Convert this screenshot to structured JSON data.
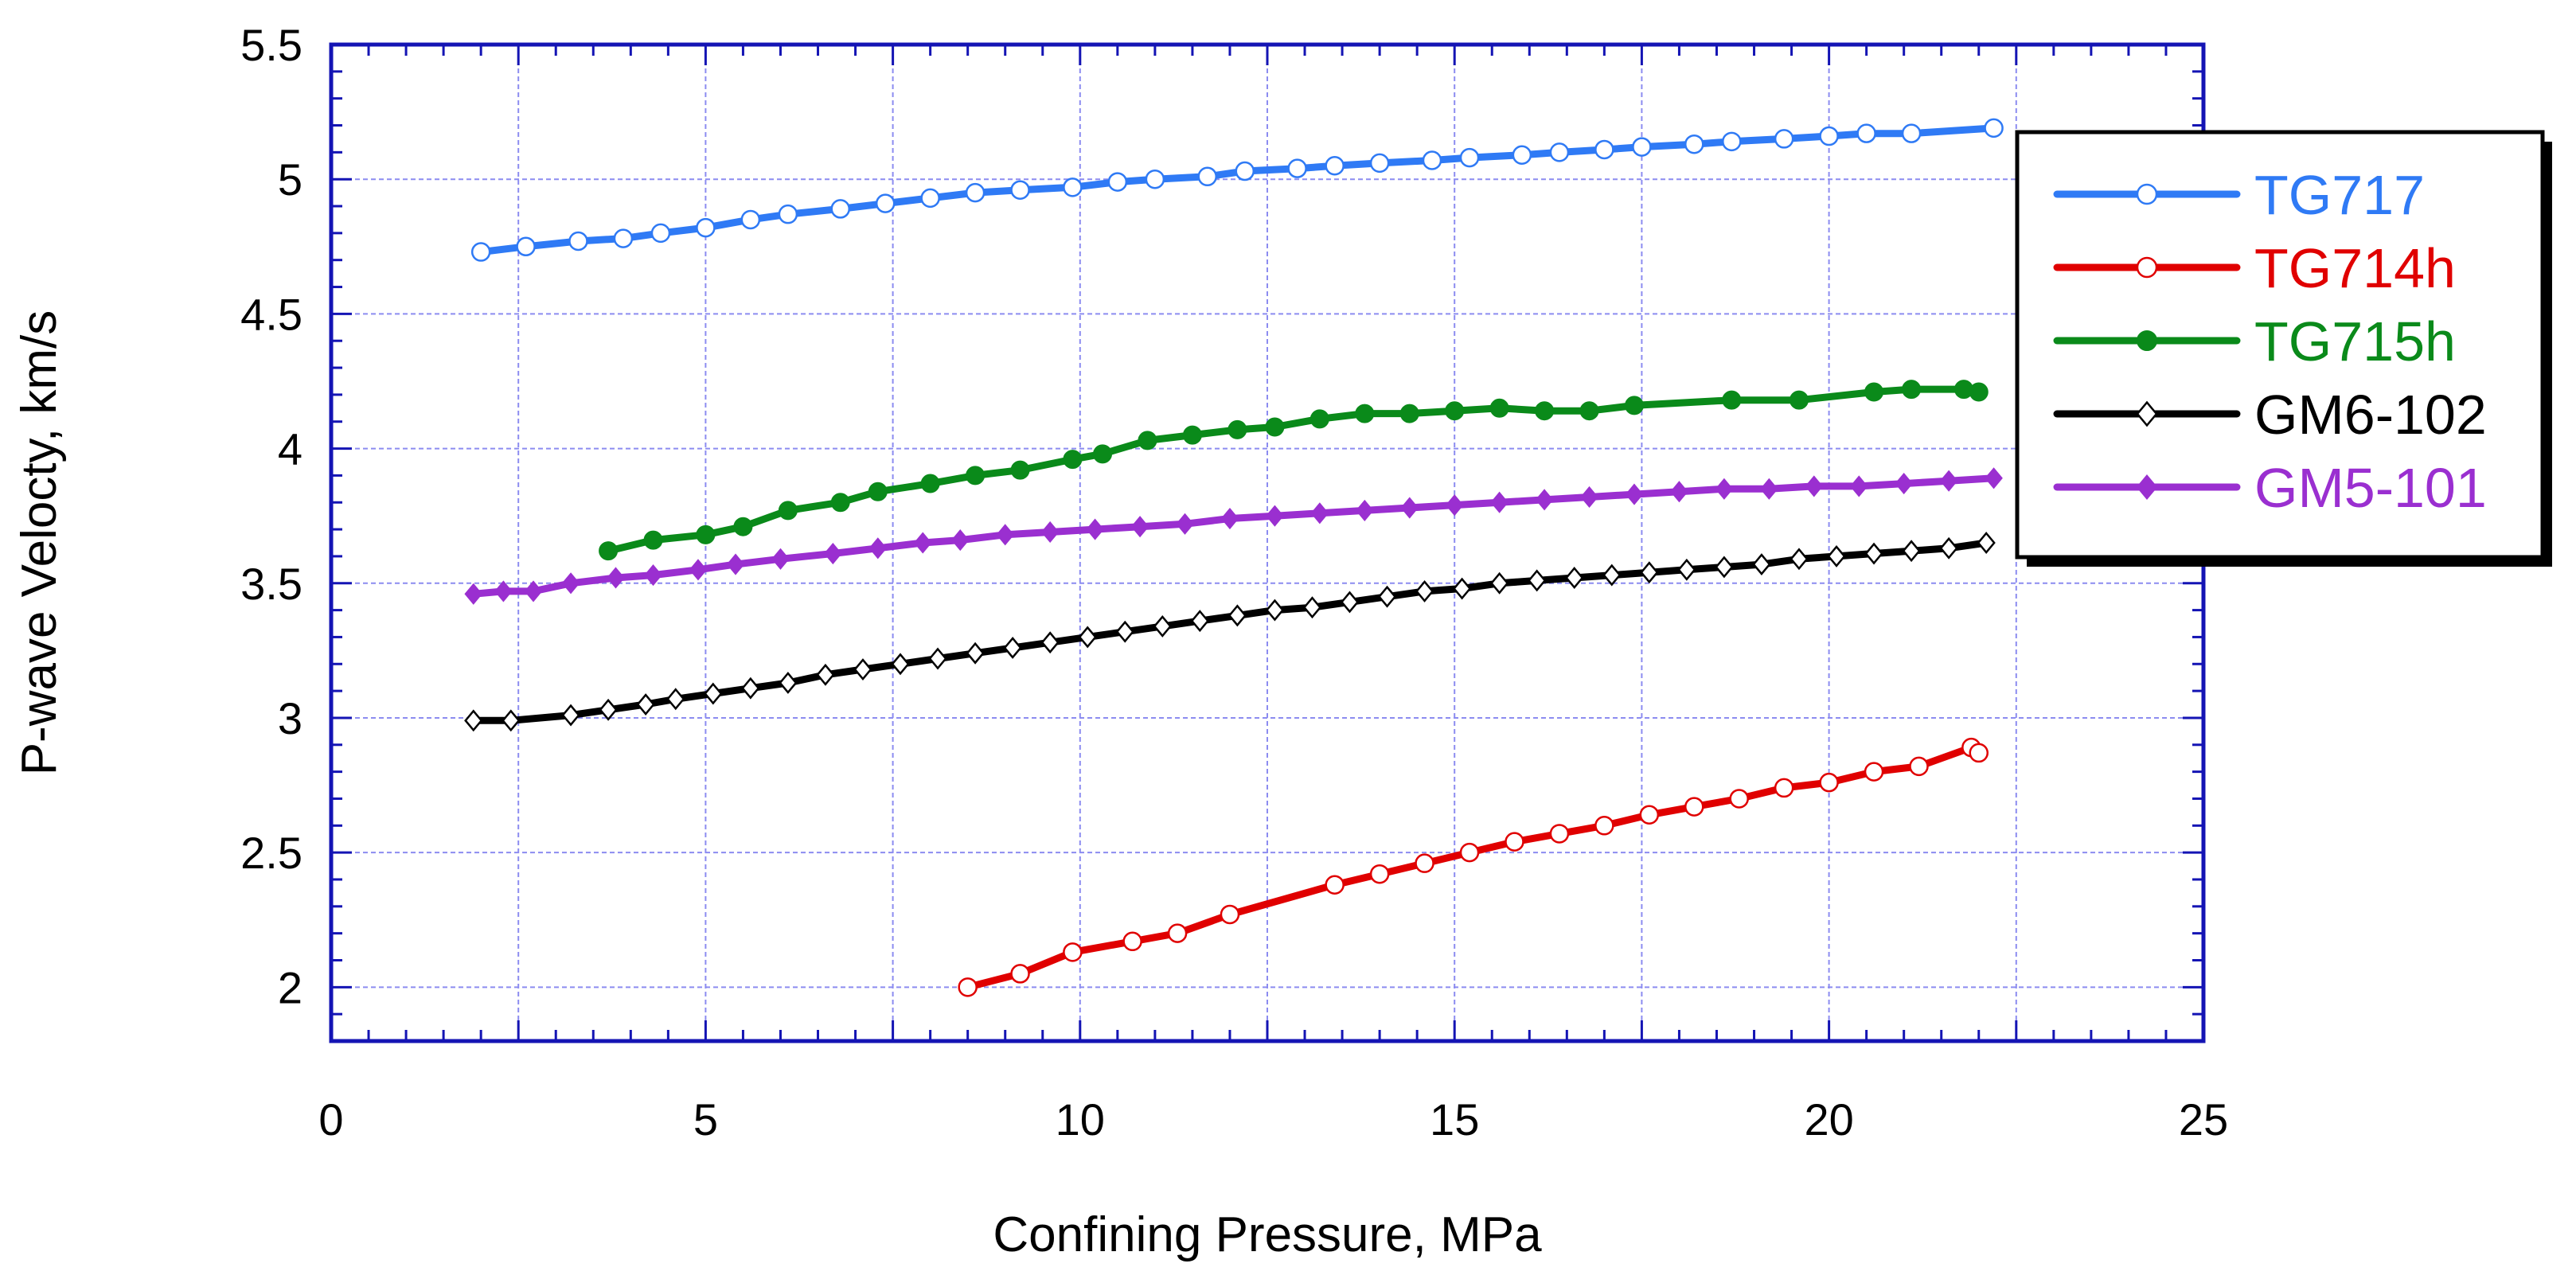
{
  "chart_data": {
    "type": "line",
    "title": "",
    "xlabel": "Confining Pressure, MPa",
    "ylabel": "P-wave Velocty, km/s",
    "xlim": [
      0,
      25
    ],
    "ylim": [
      1.8,
      5.5
    ],
    "xticks": [
      0,
      5,
      10,
      15,
      20,
      25
    ],
    "yticks": [
      2,
      2.5,
      3,
      3.5,
      4,
      4.5,
      5,
      5.5
    ],
    "grid": true,
    "legend_position": "top-right",
    "series": [
      {
        "name": "TG717",
        "color": "#2f7af5",
        "marker": "circle-open",
        "x": [
          2.0,
          2.6,
          3.3,
          3.9,
          4.4,
          5.0,
          5.6,
          6.1,
          6.8,
          7.4,
          8.0,
          8.6,
          9.2,
          9.9,
          10.5,
          11.0,
          11.7,
          12.2,
          12.9,
          13.4,
          14.0,
          14.7,
          15.2,
          15.9,
          16.4,
          17.0,
          17.5,
          18.2,
          18.7,
          19.4,
          20.0,
          20.5,
          21.1,
          22.2
        ],
        "y": [
          4.73,
          4.75,
          4.77,
          4.78,
          4.8,
          4.82,
          4.85,
          4.87,
          4.89,
          4.91,
          4.93,
          4.95,
          4.96,
          4.97,
          4.99,
          5.0,
          5.01,
          5.03,
          5.04,
          5.05,
          5.06,
          5.07,
          5.08,
          5.09,
          5.1,
          5.11,
          5.12,
          5.13,
          5.14,
          5.15,
          5.16,
          5.17,
          5.17,
          5.19
        ]
      },
      {
        "name": "TG714h",
        "color": "#e00000",
        "marker": "circle-open",
        "x": [
          8.5,
          9.2,
          9.9,
          10.7,
          11.3,
          12.0,
          13.4,
          14.0,
          14.6,
          15.2,
          15.8,
          16.4,
          17.0,
          17.6,
          18.2,
          18.8,
          19.4,
          20.0,
          20.6,
          21.2,
          21.9,
          22.0
        ],
        "y": [
          2.0,
          2.05,
          2.13,
          2.17,
          2.2,
          2.27,
          2.38,
          2.42,
          2.46,
          2.5,
          2.54,
          2.57,
          2.6,
          2.64,
          2.67,
          2.7,
          2.74,
          2.76,
          2.8,
          2.82,
          2.89,
          2.87
        ]
      },
      {
        "name": "TG715h",
        "color": "#0a8a1a",
        "marker": "circle-filled",
        "x": [
          3.7,
          4.3,
          5.0,
          5.5,
          6.1,
          6.8,
          7.3,
          8.0,
          8.6,
          9.2,
          9.9,
          10.3,
          10.9,
          11.5,
          12.1,
          12.6,
          13.2,
          13.8,
          14.4,
          15.0,
          15.6,
          16.2,
          16.8,
          17.4,
          18.7,
          19.6,
          20.6,
          21.1,
          21.8,
          22.0
        ],
        "y": [
          3.62,
          3.66,
          3.68,
          3.71,
          3.77,
          3.8,
          3.84,
          3.87,
          3.9,
          3.92,
          3.96,
          3.98,
          4.03,
          4.05,
          4.07,
          4.08,
          4.11,
          4.13,
          4.13,
          4.14,
          4.15,
          4.14,
          4.14,
          4.16,
          4.18,
          4.18,
          4.21,
          4.22,
          4.22,
          4.21
        ]
      },
      {
        "name": "GM6-102",
        "color": "#000000",
        "marker": "diamond-open",
        "x": [
          1.9,
          2.4,
          3.2,
          3.7,
          4.2,
          4.6,
          5.1,
          5.6,
          6.1,
          6.6,
          7.1,
          7.6,
          8.1,
          8.6,
          9.1,
          9.6,
          10.1,
          10.6,
          11.1,
          11.6,
          12.1,
          12.6,
          13.1,
          13.6,
          14.1,
          14.6,
          15.1,
          15.6,
          16.1,
          16.6,
          17.1,
          17.6,
          18.1,
          18.6,
          19.1,
          19.6,
          20.1,
          20.6,
          21.1,
          21.6,
          22.1
        ],
        "y": [
          2.99,
          2.99,
          3.01,
          3.03,
          3.05,
          3.07,
          3.09,
          3.11,
          3.13,
          3.16,
          3.18,
          3.2,
          3.22,
          3.24,
          3.26,
          3.28,
          3.3,
          3.32,
          3.34,
          3.36,
          3.38,
          3.4,
          3.41,
          3.43,
          3.45,
          3.47,
          3.48,
          3.5,
          3.51,
          3.52,
          3.53,
          3.54,
          3.55,
          3.56,
          3.57,
          3.59,
          3.6,
          3.61,
          3.62,
          3.63,
          3.65
        ]
      },
      {
        "name": "GM5-101",
        "color": "#9a2fd0",
        "marker": "diamond-filled",
        "x": [
          1.9,
          2.3,
          2.7,
          3.2,
          3.8,
          4.3,
          4.9,
          5.4,
          6.0,
          6.7,
          7.3,
          7.9,
          8.4,
          9.0,
          9.6,
          10.2,
          10.8,
          11.4,
          12.0,
          12.6,
          13.2,
          13.8,
          14.4,
          15.0,
          15.6,
          16.2,
          16.8,
          17.4,
          18.0,
          18.6,
          19.2,
          19.8,
          20.4,
          21.0,
          21.6,
          22.2
        ],
        "y": [
          3.46,
          3.47,
          3.47,
          3.5,
          3.52,
          3.53,
          3.55,
          3.57,
          3.59,
          3.61,
          3.63,
          3.65,
          3.66,
          3.68,
          3.69,
          3.7,
          3.71,
          3.72,
          3.74,
          3.75,
          3.76,
          3.77,
          3.78,
          3.79,
          3.8,
          3.81,
          3.82,
          3.83,
          3.84,
          3.85,
          3.85,
          3.86,
          3.86,
          3.87,
          3.88,
          3.89
        ]
      }
    ]
  }
}
